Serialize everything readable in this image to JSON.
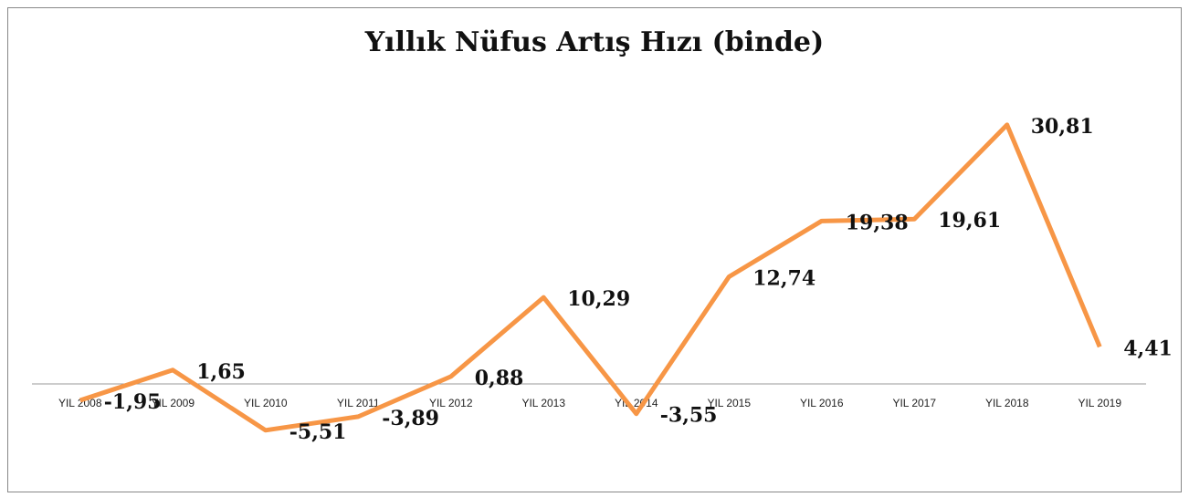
{
  "chart_data": {
    "type": "line",
    "title": "Yıllık Nüfus Artış Hızı (binde)",
    "categories": [
      "YIL 2008",
      "YIL 2009",
      "YIL 2010",
      "YIL 2011",
      "YIL 2012",
      "YIL 2013",
      "YIL 2014",
      "YIL 2015",
      "YIL 2016",
      "YIL 2017",
      "YIL 2018",
      "YIL 2019"
    ],
    "values": [
      -1.95,
      1.65,
      -5.51,
      -3.89,
      0.88,
      10.29,
      -3.55,
      12.74,
      19.38,
      19.61,
      30.81,
      4.41
    ],
    "value_labels": [
      "-1,95",
      "1,65",
      "-5,51",
      "-3,89",
      "0,88",
      "10,29",
      "-3,55",
      "12,74",
      "19,38",
      "19,61",
      "30,81",
      "4,41"
    ],
    "color": "#f79646",
    "ylim": [
      -10,
      35
    ]
  }
}
